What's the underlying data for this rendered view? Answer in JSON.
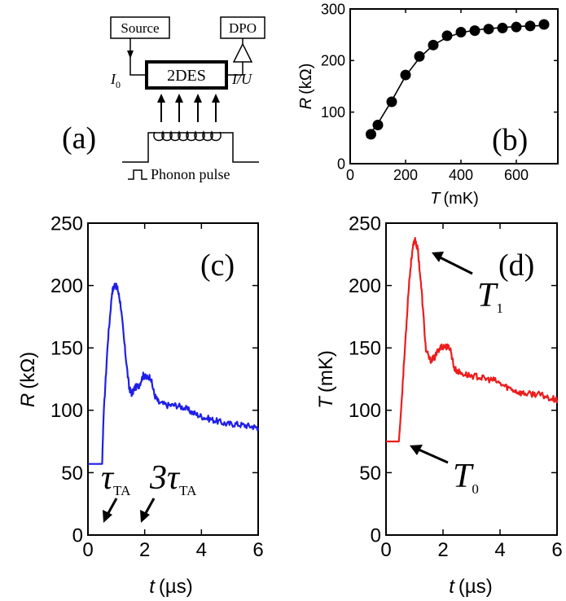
{
  "chart_data": [
    {
      "panel": "(a)",
      "type": "schematic",
      "labels": {
        "source": "Source",
        "dpo": "DPO",
        "device": "2DES",
        "current": "I",
        "current_sub": "0",
        "readout": "I/U",
        "pulse": "Phonon pulse"
      }
    },
    {
      "panel": "(b)",
      "type": "scatter",
      "xlabel": "T",
      "xunit": "(mK)",
      "ylabel": "R",
      "yunit": "(kΩ)",
      "xlim": [
        0,
        750
      ],
      "ylim": [
        0,
        300
      ],
      "xticks": [
        0,
        200,
        400,
        600
      ],
      "yticks": [
        0,
        100,
        200,
        300
      ],
      "x": [
        75,
        100,
        150,
        200,
        250,
        300,
        350,
        400,
        450,
        500,
        550,
        600,
        650,
        700
      ],
      "y": [
        57,
        75,
        120,
        172,
        208,
        230,
        248,
        255,
        258,
        261,
        263,
        265,
        267,
        270
      ],
      "fit": {
        "x": [
          60,
          100,
          150,
          200,
          250,
          300,
          350,
          400,
          450,
          500,
          550,
          600,
          650,
          700
        ],
        "y": [
          50,
          78,
          122,
          170,
          205,
          230,
          245,
          254,
          259,
          262,
          264,
          266,
          267,
          268
        ]
      },
      "color": "#000000"
    },
    {
      "panel": "(c)",
      "type": "line",
      "xlabel": "t",
      "xunit": "(µs)",
      "ylabel": "R",
      "yunit": "(kΩ)",
      "xlim": [
        0,
        6
      ],
      "ylim": [
        0,
        250
      ],
      "xticks": [
        0,
        2,
        4,
        6
      ],
      "yticks": [
        0,
        50,
        100,
        150,
        200,
        250
      ],
      "series": [
        {
          "name": "R(t)",
          "color": "#1f1fe8",
          "x": [
            0,
            0.5,
            0.55,
            0.7,
            0.85,
            0.95,
            1.05,
            1.15,
            1.3,
            1.45,
            1.55,
            1.65,
            1.8,
            1.95,
            2.05,
            2.2,
            2.35,
            2.5,
            2.8,
            3.1,
            3.4,
            3.7,
            4.0,
            4.3,
            4.6,
            4.9,
            5.2,
            5.5,
            5.8,
            6.0
          ],
          "y": [
            57,
            57,
            95,
            155,
            195,
            201,
            197,
            185,
            150,
            118,
            113,
            118,
            120,
            128,
            126,
            127,
            112,
            106,
            104,
            104,
            102,
            98,
            95,
            93,
            91,
            89,
            89,
            88,
            87,
            86
          ]
        }
      ],
      "annotations": [
        {
          "text": "τ",
          "sub": "TA",
          "arrow_to_x": 0.6
        },
        {
          "text": "3τ",
          "sub": "TA",
          "arrow_to_x": 1.8
        }
      ]
    },
    {
      "panel": "(d)",
      "type": "line",
      "xlabel": "t",
      "xunit": "(µs)",
      "ylabel": "T",
      "yunit": "(mK)",
      "xlim": [
        0,
        6
      ],
      "ylim": [
        0,
        250
      ],
      "xticks": [
        0,
        2,
        4,
        6
      ],
      "yticks": [
        0,
        50,
        100,
        150,
        200,
        250
      ],
      "series": [
        {
          "name": "T(t)",
          "color": "#ee1c1c",
          "x": [
            0,
            0.45,
            0.5,
            0.65,
            0.8,
            0.92,
            1.02,
            1.12,
            1.25,
            1.4,
            1.55,
            1.7,
            1.85,
            1.95,
            2.1,
            2.25,
            2.4,
            2.6,
            2.9,
            3.2,
            3.5,
            3.8,
            4.1,
            4.4,
            4.7,
            5.0,
            5.3,
            5.6,
            5.9,
            6.0
          ],
          "y": [
            75,
            75,
            90,
            145,
            200,
            228,
            237,
            228,
            195,
            148,
            140,
            142,
            149,
            151,
            151,
            150,
            133,
            130,
            128,
            127,
            125,
            124,
            120,
            117,
            114,
            113,
            113,
            111,
            109,
            108
          ]
        }
      ],
      "annotations": [
        {
          "text": "T",
          "sub": "1",
          "arrow_to": [
            1.05,
            228
          ]
        },
        {
          "text": "T",
          "sub": "0",
          "arrow_to": [
            0.9,
            75
          ]
        }
      ]
    }
  ]
}
